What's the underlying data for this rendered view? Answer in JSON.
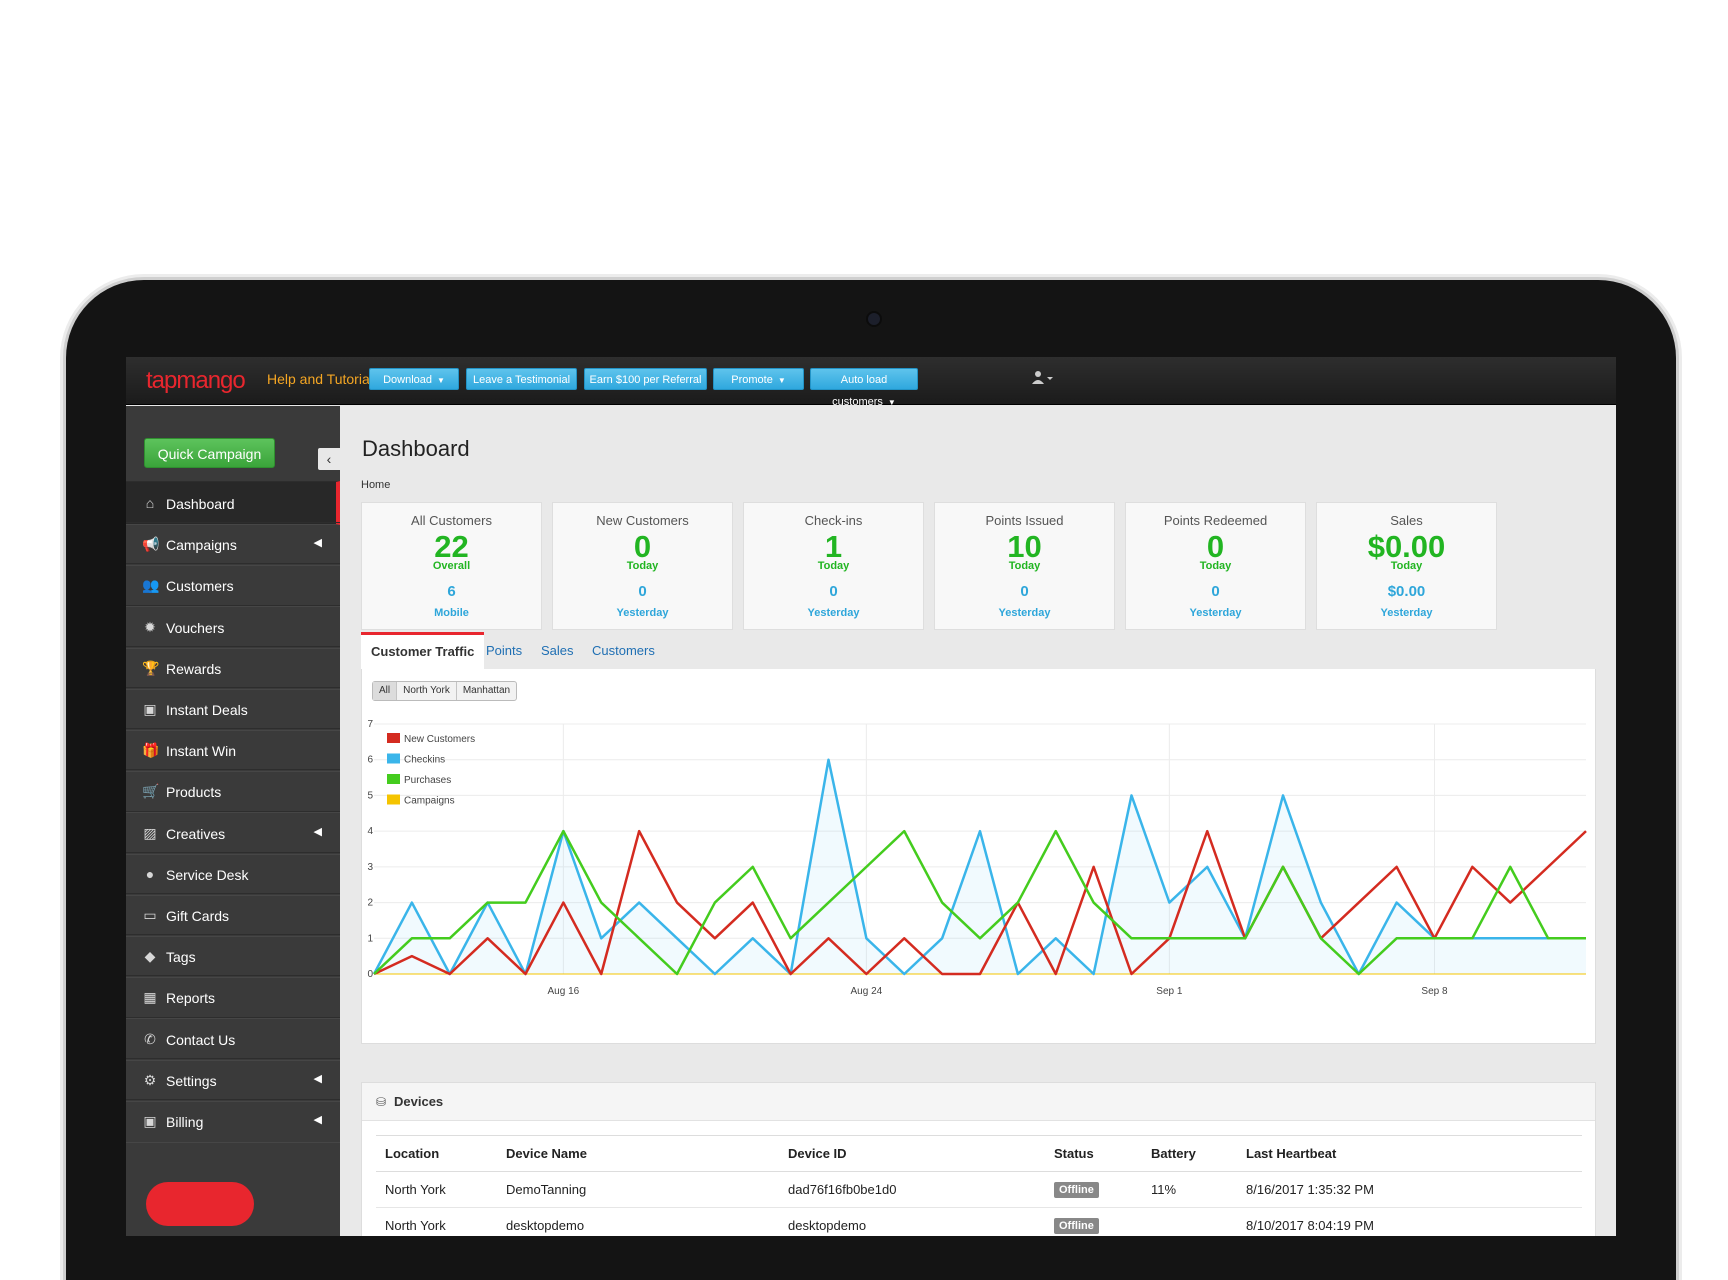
{
  "topbar": {
    "logo": "tapmango",
    "help": "Help and Tutorials",
    "buttons": [
      {
        "label": "Download",
        "dropdown": true
      },
      {
        "label": "Leave a Testimonial",
        "dropdown": false
      },
      {
        "label": "Earn $100 per Referral",
        "dropdown": false
      },
      {
        "label": "Promote",
        "dropdown": true
      },
      {
        "label": "Auto load customers",
        "dropdown": true
      }
    ],
    "user_icon": "user-icon"
  },
  "sidebar": {
    "quick_campaign": "Quick Campaign",
    "items": [
      {
        "label": "Dashboard",
        "icon": "home-icon",
        "has_submenu": false
      },
      {
        "label": "Campaigns",
        "icon": "bullhorn-icon",
        "has_submenu": true
      },
      {
        "label": "Customers",
        "icon": "group-icon",
        "has_submenu": false
      },
      {
        "label": "Vouchers",
        "icon": "badge-icon",
        "has_submenu": false
      },
      {
        "label": "Rewards",
        "icon": "trophy-icon",
        "has_submenu": false
      },
      {
        "label": "Instant Deals",
        "icon": "money-icon",
        "has_submenu": false
      },
      {
        "label": "Instant Win",
        "icon": "gift-icon",
        "has_submenu": false
      },
      {
        "label": "Products",
        "icon": "cart-icon",
        "has_submenu": false
      },
      {
        "label": "Creatives",
        "icon": "picture-icon",
        "has_submenu": true
      },
      {
        "label": "Service Desk",
        "icon": "comment-icon",
        "has_submenu": false
      },
      {
        "label": "Gift Cards",
        "icon": "credit-card-icon",
        "has_submenu": false
      },
      {
        "label": "Tags",
        "icon": "tags-icon",
        "has_submenu": false
      },
      {
        "label": "Reports",
        "icon": "table-icon",
        "has_submenu": false
      },
      {
        "label": "Contact Us",
        "icon": "phone-icon",
        "has_submenu": false
      },
      {
        "label": "Settings",
        "icon": "gear-icon",
        "has_submenu": true
      },
      {
        "label": "Billing",
        "icon": "money-icon",
        "has_submenu": true
      }
    ]
  },
  "page": {
    "title": "Dashboard",
    "breadcrumb": "Home"
  },
  "stats": [
    {
      "title": "All Customers",
      "value": "22",
      "sub": "Overall",
      "value2": "6",
      "sub2": "Mobile"
    },
    {
      "title": "New Customers",
      "value": "0",
      "sub": "Today",
      "value2": "0",
      "sub2": "Yesterday"
    },
    {
      "title": "Check-ins",
      "value": "1",
      "sub": "Today",
      "value2": "0",
      "sub2": "Yesterday"
    },
    {
      "title": "Points Issued",
      "value": "10",
      "sub": "Today",
      "value2": "0",
      "sub2": "Yesterday"
    },
    {
      "title": "Points Redeemed",
      "value": "0",
      "sub": "Today",
      "value2": "0",
      "sub2": "Yesterday"
    },
    {
      "title": "Sales",
      "value": "$0.00",
      "sub": "Today",
      "value2": "$0.00",
      "sub2": "Yesterday"
    }
  ],
  "tabs": [
    "Customer Traffic",
    "Points",
    "Sales",
    "Customers"
  ],
  "filters": [
    "All",
    "North York",
    "Manhattan"
  ],
  "colors": {
    "new_customers": "#d42b20",
    "checkins": "#3ab5ea",
    "purchases": "#44cc1e",
    "campaigns": "#f5c400"
  },
  "chart_data": {
    "type": "line",
    "x_count": 33,
    "x_ticks": [
      {
        "index": 5,
        "label": "Aug 16"
      },
      {
        "index": 13,
        "label": "Aug 24"
      },
      {
        "index": 21,
        "label": "Sep 1"
      },
      {
        "index": 28,
        "label": "Sep 8"
      }
    ],
    "ylim": [
      0,
      7
    ],
    "yticks": [
      0,
      1,
      2,
      3,
      4,
      5,
      6,
      7
    ],
    "grid": true,
    "legend_position": "top-left",
    "series": [
      {
        "name": "New Customers",
        "values": [
          0,
          0.5,
          0,
          1,
          0,
          2,
          0,
          4,
          2,
          1,
          2,
          0,
          1,
          0,
          1,
          0,
          0,
          2,
          0,
          3,
          0,
          1,
          4,
          1,
          3,
          1,
          2,
          3,
          1,
          3,
          2,
          3,
          4
        ]
      },
      {
        "name": "Checkins",
        "values": [
          0,
          2,
          0,
          2,
          0,
          4,
          1,
          2,
          1,
          0,
          1,
          0,
          6,
          1,
          0,
          1,
          4,
          0,
          1,
          0,
          5,
          2,
          3,
          1,
          5,
          2,
          0,
          2,
          1,
          1,
          1,
          1,
          1
        ]
      },
      {
        "name": "Purchases",
        "values": [
          0,
          1,
          1,
          2,
          2,
          4,
          2,
          1,
          0,
          2,
          3,
          1,
          2,
          3,
          4,
          2,
          1,
          2,
          4,
          2,
          1,
          1,
          1,
          1,
          3,
          1,
          0,
          1,
          1,
          1,
          3,
          1,
          1
        ]
      },
      {
        "name": "Campaigns",
        "values": [
          0,
          0,
          0,
          0,
          0,
          0,
          0,
          0,
          0,
          0,
          0,
          0,
          0,
          0,
          0,
          0,
          0,
          0,
          0,
          0,
          0,
          0,
          0,
          0,
          0,
          0,
          0,
          0,
          0,
          0,
          0,
          0,
          0
        ]
      }
    ]
  },
  "devices": {
    "title": "Devices",
    "columns": [
      "Location",
      "Device Name",
      "Device ID",
      "Status",
      "Battery",
      "Last Heartbeat"
    ],
    "rows": [
      [
        "North York",
        "DemoTanning",
        "dad76f16fb0be1d0",
        "Offline",
        "11%",
        "8/16/2017 1:35:32 PM"
      ],
      [
        "North York",
        "desktopdemo",
        "desktopdemo",
        "Offline",
        "",
        "8/10/2017 8:04:19 PM"
      ]
    ]
  }
}
